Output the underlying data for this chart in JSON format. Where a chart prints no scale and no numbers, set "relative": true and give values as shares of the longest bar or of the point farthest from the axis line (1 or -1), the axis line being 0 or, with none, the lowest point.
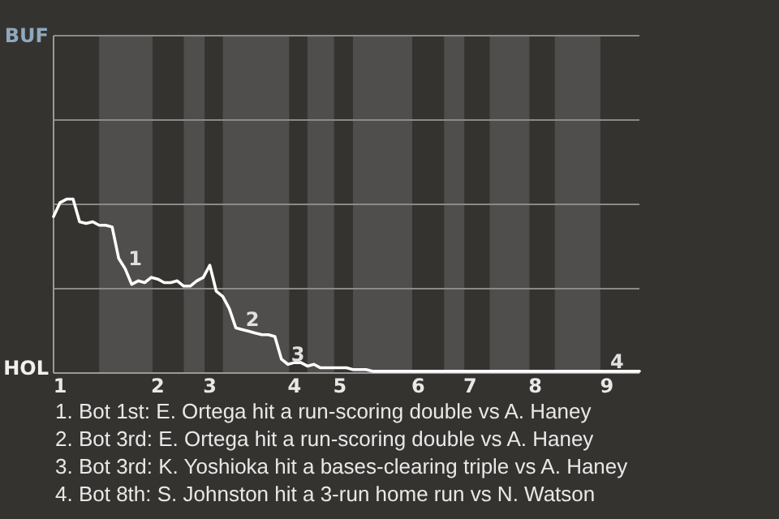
{
  "chart_data": {
    "type": "line",
    "relative": true,
    "categories": [
      null,
      "1",
      null,
      null,
      null,
      null,
      null,
      null,
      null,
      null,
      null,
      null,
      null,
      null,
      null,
      null,
      "2",
      null,
      null,
      null,
      null,
      null,
      null,
      null,
      "3",
      null,
      null,
      null,
      null,
      null,
      null,
      null,
      null,
      null,
      null,
      null,
      null,
      "4",
      null,
      null,
      null,
      null,
      null,
      null,
      "5",
      null,
      null,
      null,
      null,
      null,
      null,
      null,
      null,
      null,
      null,
      null,
      "6",
      null,
      null,
      null,
      null,
      null,
      null,
      null,
      "7",
      null,
      null,
      null,
      null,
      null,
      null,
      null,
      null,
      null,
      "8",
      null,
      null,
      null,
      null,
      null,
      null,
      null,
      null,
      null,
      null,
      "9",
      null,
      null,
      null,
      null,
      null
    ],
    "marker": "none",
    "line_style": "solid",
    "ref_lines": [
      {
        "axis": "y",
        "value": 0.485,
        "color": "#8a8a88"
      },
      {
        "axis": "y",
        "value": 0.97,
        "color": "#8a8a88"
      },
      {
        "axis": "y",
        "value": 1.455,
        "color": "#8a8a88"
      },
      {
        "axis": "y",
        "value": 1.94,
        "color": "#8a8a88"
      }
    ],
    "series": [
      {
        "color": "#ffffff",
        "values": [
          0.9,
          0.98,
          1,
          1,
          0.87,
          0.86,
          0.87,
          0.85,
          0.85,
          0.84,
          0.66,
          0.6,
          0.51,
          0.53,
          0.52,
          0.55,
          0.54,
          0.52,
          0.52,
          0.53,
          0.5,
          0.5,
          0.53,
          0.55,
          0.62,
          0.47,
          0.44,
          0.37,
          0.26,
          0.25,
          0.24,
          0.23,
          0.22,
          0.22,
          0.21,
          0.08,
          0.05,
          0.06,
          0.06,
          0.04,
          0.05,
          0.03,
          0.03,
          0.03,
          0.03,
          0.03,
          0.02,
          0.02,
          0.02,
          0.01,
          0.01,
          0.01,
          0.01,
          0.01,
          0.01,
          0.01,
          0.01,
          0.01,
          0.01,
          0.01,
          0.01,
          0.01,
          0.01,
          0.01,
          0.01,
          0.01,
          0.01,
          0.01,
          0.01,
          0.01,
          0.01,
          0.01,
          0.01,
          0.01,
          0.01,
          0.01,
          0.01,
          0.01,
          0.01,
          0.01,
          0.01,
          0.01,
          0.01,
          0.01,
          0.01,
          0.01,
          0.01,
          0.01,
          0.01,
          0.01,
          0.01
        ]
      }
    ],
    "annotations": [
      "BUF",
      "HOL",
      "1",
      "2",
      "3",
      "4",
      "1. Bot 1st: E. Ortega hit a run-scoring double vs A. Haney",
      "2. Bot 3rd: E. Ortega hit a run-scoring double vs A. Haney",
      "3. Bot 3rd: K. Yoshioka hit a bases-clearing triple vs A. Haney",
      "4. Bot 8th: S. Johnston hit a 3-run home run vs N. Watson"
    ]
  }
}
